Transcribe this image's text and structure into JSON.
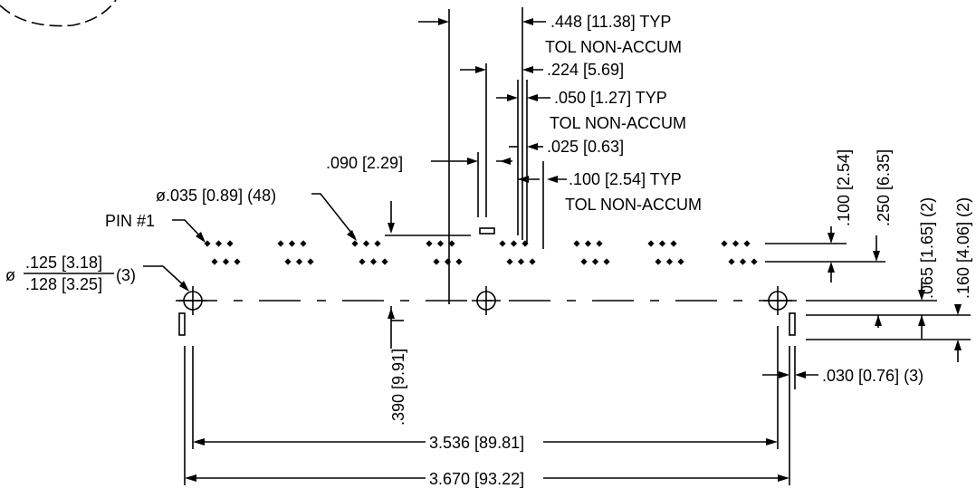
{
  "drawing": {
    "colors": {
      "ink": "#000000",
      "paper": "#ffffff"
    },
    "labels": {
      "pitch_typ": ".448 [11.38] TYP",
      "pitch_tol": "TOL NON-ACCUM",
      "half_pitch": ".224 [5.69]",
      "pin_pitch_typ": ".050 [1.27] TYP",
      "pin_pitch_tol": "TOL NON-ACCUM",
      "half_pin_pitch": ".025 [0.63]",
      "row_pitch_typ": ".100 [2.54] TYP",
      "row_pitch_tol": "TOL NON-ACCUM",
      "offset_090": ".090 [2.29]",
      "pin_hole": "ø.035 [0.89] (48)",
      "pin1": "PIN #1",
      "mount_phi": "ø",
      "mount_top": ".125 [3.18]",
      "mount_bottom": ".128 [3.25]",
      "mount_qty": "(3)",
      "dim_100_vert": ".100 [2.54]",
      "dim_250": ".250 [6.35]",
      "dim_065": ".065 [1.65] (2)",
      "dim_160": ".160 [4.06] (2)",
      "dim_390": ".390 [9.91]",
      "slot_width": ".030 [0.76] (3)",
      "span_inner": "3.536 [89.81]",
      "span_outer": "3.670 [93.22]"
    }
  }
}
